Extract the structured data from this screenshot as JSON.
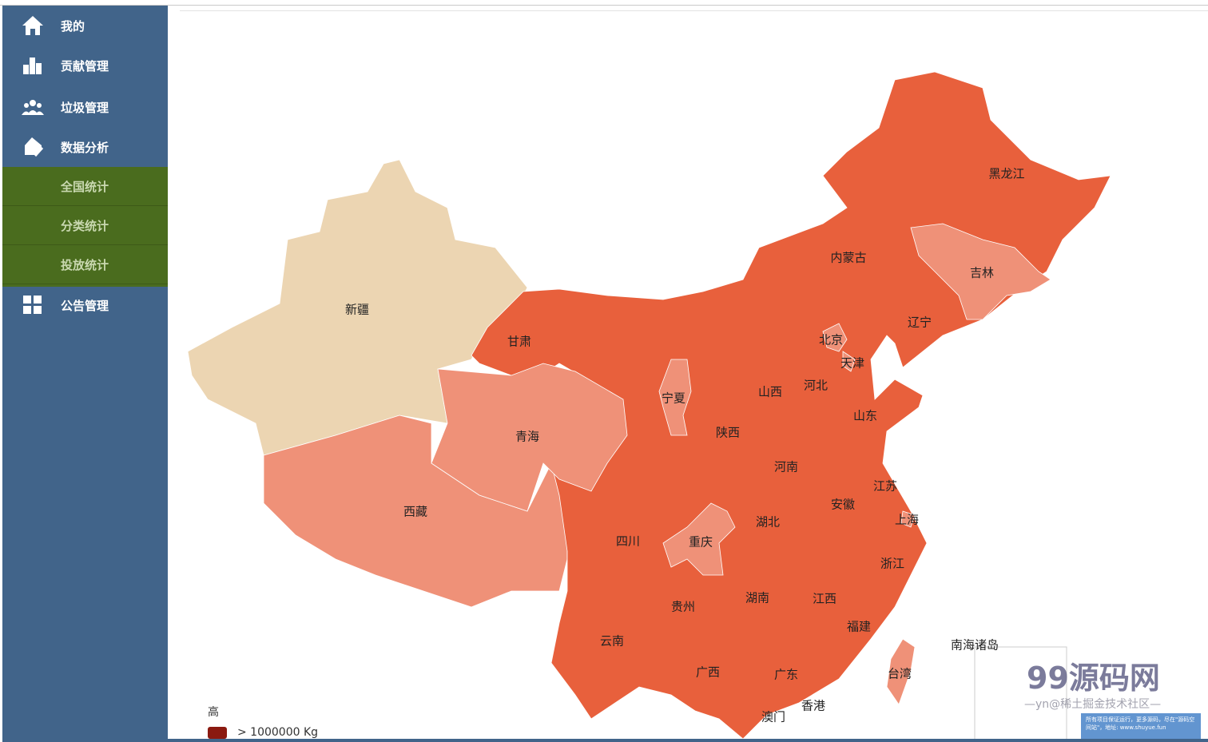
{
  "sidebar": {
    "items": [
      {
        "label": "我的",
        "icon": "home-icon"
      },
      {
        "label": "贡献管理",
        "icon": "bar-chart-icon"
      },
      {
        "label": "垃圾管理",
        "icon": "users-icon"
      },
      {
        "label": "数据分析",
        "icon": "house-check-icon"
      },
      {
        "label": "公告管理",
        "icon": "grid-icon"
      }
    ],
    "submenu": [
      {
        "label": "全国统计"
      },
      {
        "label": "分类统计"
      },
      {
        "label": "投放统计"
      }
    ],
    "colors": {
      "bg": "#41648a",
      "submenu_bg": "#4a6c1e"
    }
  },
  "map": {
    "colors": {
      "high": "#e8603c",
      "medium": "#ef9178",
      "low": "#ecd5b2",
      "legend_top": "#8b1a10"
    },
    "provinces": {
      "heilongjiang": "黑龙江",
      "neimenggu": "内蒙古",
      "jilin": "吉林",
      "liaoning": "辽宁",
      "beijing": "北京",
      "tianjin": "天津",
      "hebei": "河北",
      "shanxi": "山西",
      "shandong": "山东",
      "ningxia": "宁夏",
      "gansu": "甘肃",
      "xinjiang": "新疆",
      "qinghai": "青海",
      "xizang": "西藏",
      "shaanxi": "陕西",
      "henan": "河南",
      "jiangsu": "江苏",
      "anhui": "安徽",
      "shanghai": "上海",
      "hubei": "湖北",
      "sichuan": "四川",
      "chongqing": "重庆",
      "zhejiang": "浙江",
      "guizhou": "贵州",
      "hunan": "湖南",
      "jiangxi": "江西",
      "fujian": "福建",
      "yunnan": "云南",
      "guangxi": "广西",
      "guangdong": "广东",
      "taiwan": "台湾",
      "xianggang": "香港",
      "aomen": "澳门",
      "nanhai": "南海诸岛"
    },
    "legend": {
      "title": "高",
      "item": "> 1000000 Kg"
    }
  },
  "watermark": {
    "brand": "99源码网",
    "sub": "—yn@稀土掘金技术社区—",
    "note": "所有项目保证运行，更多源码，尽在\"源码空间站\"，地址: www.shuyue.fun"
  }
}
